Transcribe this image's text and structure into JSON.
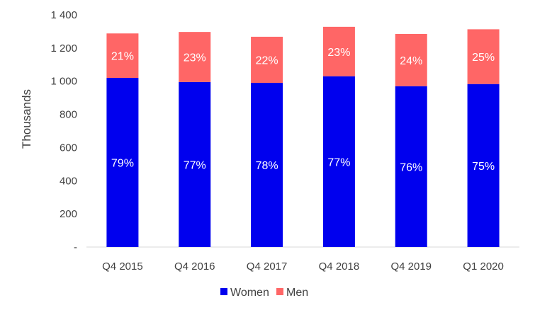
{
  "chart_data": {
    "type": "bar",
    "stacked": true,
    "ylabel": "Thousands",
    "xlabel": "",
    "title": "",
    "ylim": [
      0,
      1400
    ],
    "yticks": [
      0,
      200,
      400,
      600,
      800,
      1000,
      1200,
      1400
    ],
    "ytick_labels": [
      "-",
      "200",
      "400",
      "600",
      "800",
      "1 000",
      "1 200",
      "1 400"
    ],
    "categories": [
      "Q4 2015",
      "Q4 2016",
      "Q4 2017",
      "Q4 2018",
      "Q4 2019",
      "Q1 2020"
    ],
    "series": [
      {
        "name": "Women",
        "color": "#0000ee",
        "values": [
          1020,
          995,
          990,
          1030,
          970,
          983
        ],
        "labels": [
          "79%",
          "77%",
          "78%",
          "77%",
          "76%",
          "75%"
        ]
      },
      {
        "name": "Men",
        "color": "#ff6666",
        "values": [
          268,
          302,
          278,
          298,
          315,
          330
        ],
        "labels": [
          "21%",
          "23%",
          "22%",
          "23%",
          "24%",
          "25%"
        ]
      }
    ],
    "grid": false,
    "legend_position": "bottom"
  }
}
